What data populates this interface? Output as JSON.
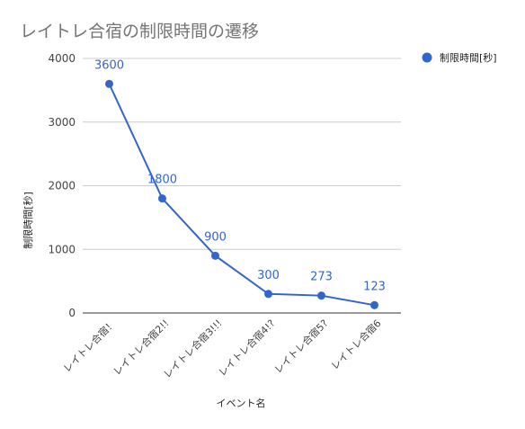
{
  "chart_data": {
    "type": "line",
    "title": "レイトレ合宿の制限時間の遷移",
    "xlabel": "イベント名",
    "ylabel": "制限時間[秒]",
    "categories": [
      "レイトレ合宿！",
      "レイトレ合宿2!!",
      "レイトレ合宿3!!!",
      "レイトレ合宿4!?",
      "レイトレ合宿5?",
      "レイトレ合宿6"
    ],
    "series": [
      {
        "name": "制限時間[秒]",
        "values": [
          3600,
          1800,
          900,
          300,
          273,
          123
        ],
        "color": "#3366cc"
      }
    ],
    "y_ticks": [
      "0",
      "1000",
      "2000",
      "3000",
      "4000"
    ],
    "ylim": [
      0,
      4000
    ],
    "data_labels": [
      "3600",
      "1800",
      "900",
      "300",
      "273",
      "123"
    ],
    "grid": true,
    "legend": "right"
  }
}
